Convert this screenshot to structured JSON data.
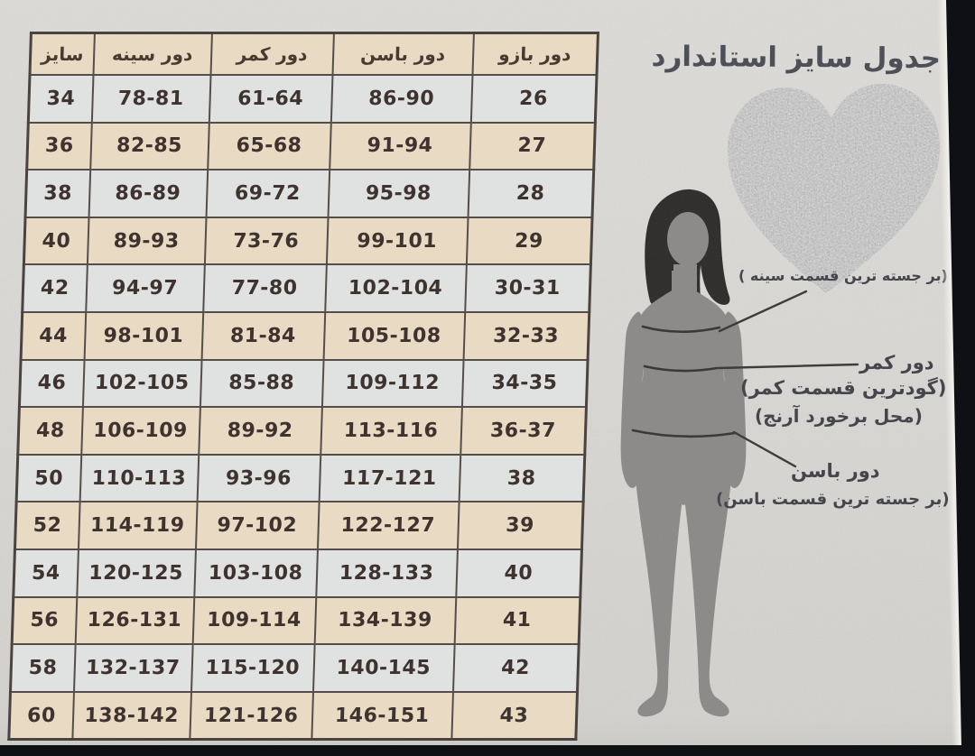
{
  "title": "جدول سایز استاندارد",
  "table": {
    "headers": [
      "سایز",
      "دور سینه",
      "دور کمر",
      "دور باسن",
      "دور بازو"
    ],
    "rows": [
      [
        "34",
        "78-81",
        "61-64",
        "86-90",
        "26"
      ],
      [
        "36",
        "82-85",
        "65-68",
        "91-94",
        "27"
      ],
      [
        "38",
        "86-89",
        "69-72",
        "95-98",
        "28"
      ],
      [
        "40",
        "89-93",
        "73-76",
        "99-101",
        "29"
      ],
      [
        "42",
        "94-97",
        "77-80",
        "102-104",
        "30-31"
      ],
      [
        "44",
        "98-101",
        "81-84",
        "105-108",
        "32-33"
      ],
      [
        "46",
        "102-105",
        "85-88",
        "109-112",
        "34-35"
      ],
      [
        "48",
        "106-109",
        "89-92",
        "113-116",
        "36-37"
      ],
      [
        "50",
        "110-113",
        "93-96",
        "117-121",
        "38"
      ],
      [
        "52",
        "114-119",
        "97-102",
        "122-127",
        "39"
      ],
      [
        "54",
        "120-125",
        "103-108",
        "128-133",
        "40"
      ],
      [
        "56",
        "126-131",
        "109-114",
        "134-139",
        "41"
      ],
      [
        "58",
        "132-137",
        "115-120",
        "140-145",
        "42"
      ],
      [
        "60",
        "138-142",
        "121-126",
        "146-151",
        "43"
      ]
    ]
  },
  "annotations": {
    "chest_note": "(بر جسته ترین قسمت سینه )",
    "waist_label": "دور کمر",
    "waist_note_1": "(گودترین قسمت کمر)",
    "waist_note_2": "(محل برخورد آرنج)",
    "hip_label": "دور باسن",
    "hip_note": "(بر جسته ترین قسمت باسن)"
  },
  "colors": {
    "row_beige": "#e9dac3",
    "row_light": "#dfe2e0",
    "table_border": "#554d49",
    "page_background": "#d8d7d4",
    "dark_frame": "#0e1013",
    "body_silhouette": "#8d8b89",
    "hair": "#312f2d",
    "cell_text": "#3e332e",
    "annotation_text": "#46454c",
    "title_text": "#4f4f58"
  }
}
